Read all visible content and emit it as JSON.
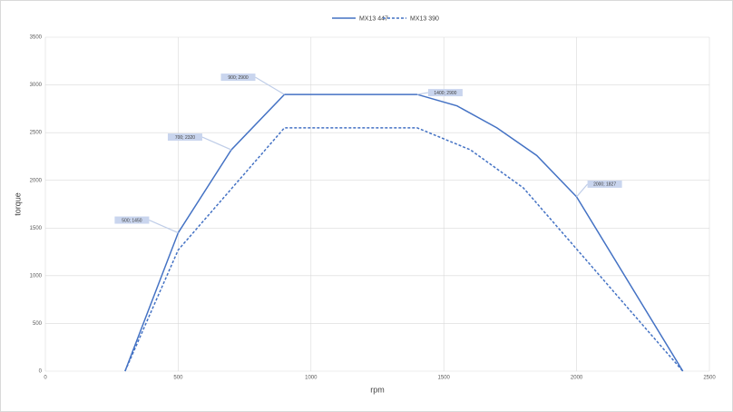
{
  "chart_data": {
    "type": "line",
    "x_label": "rpm",
    "y_label": "torque",
    "xlim": [
      0,
      2500
    ],
    "xticks": [
      0,
      500,
      1000,
      1500,
      2000,
      2500
    ],
    "ylim": [
      0,
      3500
    ],
    "yticks": [
      0,
      500,
      1000,
      1500,
      2000,
      2500,
      3000,
      3500
    ],
    "grid": true,
    "legend": "top",
    "series": [
      {
        "name": "MX13 447",
        "color": "#4472c4",
        "dash": "solid",
        "x": [
          300,
          500,
          700,
          900,
          1400,
          1550,
          1700,
          1850,
          2000,
          2400
        ],
        "values": [
          0,
          1450,
          2320,
          2900,
          2900,
          2780,
          2550,
          2260,
          1827,
          0
        ],
        "value_labels": [
          null,
          "500; 1450",
          "700; 2320",
          "900; 2900",
          "1400; 2900",
          null,
          null,
          null,
          "2000; 1827",
          null
        ]
      },
      {
        "name": "MX13 390",
        "color": "#4472c4",
        "dash": "dashed",
        "x": [
          300,
          500,
          900,
          1400,
          1600,
          1800,
          2400
        ],
        "values": [
          0,
          1270,
          2550,
          2550,
          2320,
          1920,
          0
        ]
      }
    ]
  }
}
